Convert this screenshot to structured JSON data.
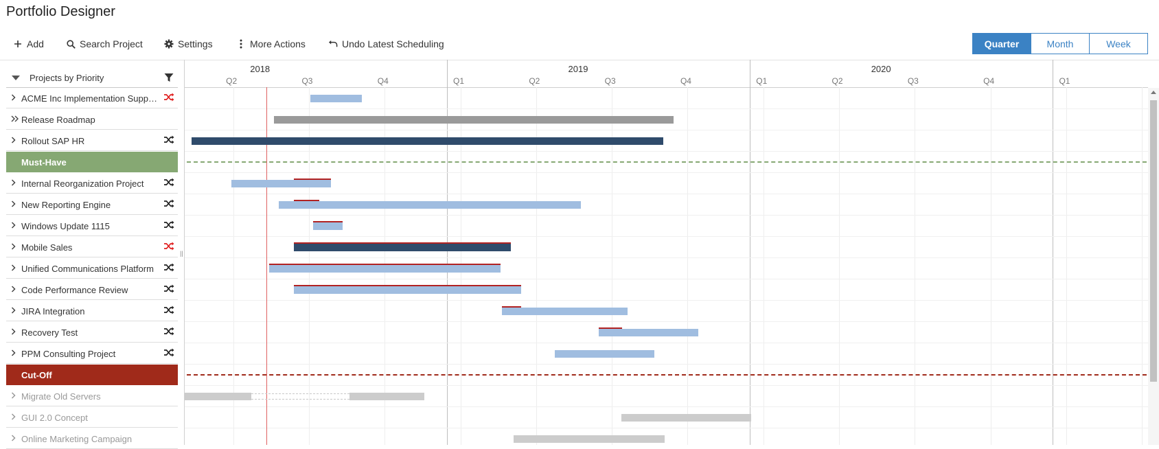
{
  "app": {
    "title": "Portfolio Designer"
  },
  "toolbar": {
    "add_label": "Add",
    "search_label": "Search Project",
    "settings_label": "Settings",
    "more_label": "More Actions",
    "undo_label": "Undo Latest Scheduling"
  },
  "view_switch": {
    "quarter": "Quarter",
    "month": "Month",
    "week": "Week",
    "active": "quarter"
  },
  "list_header": {
    "label": "Projects by Priority"
  },
  "colors": {
    "must_have": "#86a873",
    "cut_off": "#a02a1a",
    "bar_light": "#a0bde0",
    "bar_dark": "#2f4b6b",
    "bar_gray": "#9a9a9a",
    "bar_faded": "#cccccc",
    "shuffle_alert": "#e02020",
    "accent": "#3b82c4"
  },
  "timeline": {
    "years": [
      "2018",
      "2019",
      "2020"
    ],
    "quarters": [
      "Q2",
      "Q3",
      "Q4",
      "Q1",
      "Q2",
      "Q3",
      "Q4",
      "Q1",
      "Q2",
      "Q3",
      "Q4",
      "Q1"
    ]
  },
  "projects": [
    {
      "name": "ACME Inc Implementation Support",
      "type": "project",
      "chevron": "single",
      "shuffle": "alert",
      "bar": "light"
    },
    {
      "name": "Release Roadmap",
      "type": "project",
      "chevron": "double",
      "shuffle": "none",
      "bar": "gray"
    },
    {
      "name": "Rollout SAP HR",
      "type": "project",
      "chevron": "single",
      "shuffle": "normal",
      "bar": "dark"
    },
    {
      "name": "Must-Have",
      "type": "group-must"
    },
    {
      "name": "Internal Reorganization Project",
      "type": "project",
      "chevron": "single",
      "shuffle": "normal",
      "bar": "light"
    },
    {
      "name": "New Reporting Engine",
      "type": "project",
      "chevron": "single",
      "shuffle": "normal",
      "bar": "light"
    },
    {
      "name": "Windows Update 1115",
      "type": "project",
      "chevron": "single",
      "shuffle": "normal",
      "bar": "light"
    },
    {
      "name": "Mobile Sales",
      "type": "project",
      "chevron": "single",
      "shuffle": "alert",
      "bar": "dark"
    },
    {
      "name": "Unified Communications Platform",
      "type": "project",
      "chevron": "single",
      "shuffle": "normal",
      "bar": "light"
    },
    {
      "name": "Code Performance Review",
      "type": "project",
      "chevron": "single",
      "shuffle": "normal",
      "bar": "light"
    },
    {
      "name": "JIRA Integration",
      "type": "project",
      "chevron": "single",
      "shuffle": "normal",
      "bar": "light"
    },
    {
      "name": "Recovery Test",
      "type": "project",
      "chevron": "single",
      "shuffle": "normal",
      "bar": "light"
    },
    {
      "name": "PPM Consulting Project",
      "type": "project",
      "chevron": "single",
      "shuffle": "normal",
      "bar": "light"
    },
    {
      "name": "Cut-Off",
      "type": "group-cut"
    },
    {
      "name": "Migrate Old Servers",
      "type": "faded",
      "chevron": "single",
      "bar": "faded"
    },
    {
      "name": "GUI 2.0 Concept",
      "type": "faded",
      "chevron": "single",
      "bar": "faded"
    },
    {
      "name": "Online Marketing Campaign",
      "type": "faded",
      "chevron": "single",
      "bar": "faded"
    }
  ],
  "icons": {
    "add": "plus-icon",
    "search": "search-icon",
    "settings": "gear-icon",
    "more": "vertical-dots-icon",
    "undo": "undo-icon",
    "filter": "filter-icon",
    "shuffle": "shuffle-icon",
    "chevron": "chevron-right-icon",
    "collapse": "triangle-down-icon"
  }
}
